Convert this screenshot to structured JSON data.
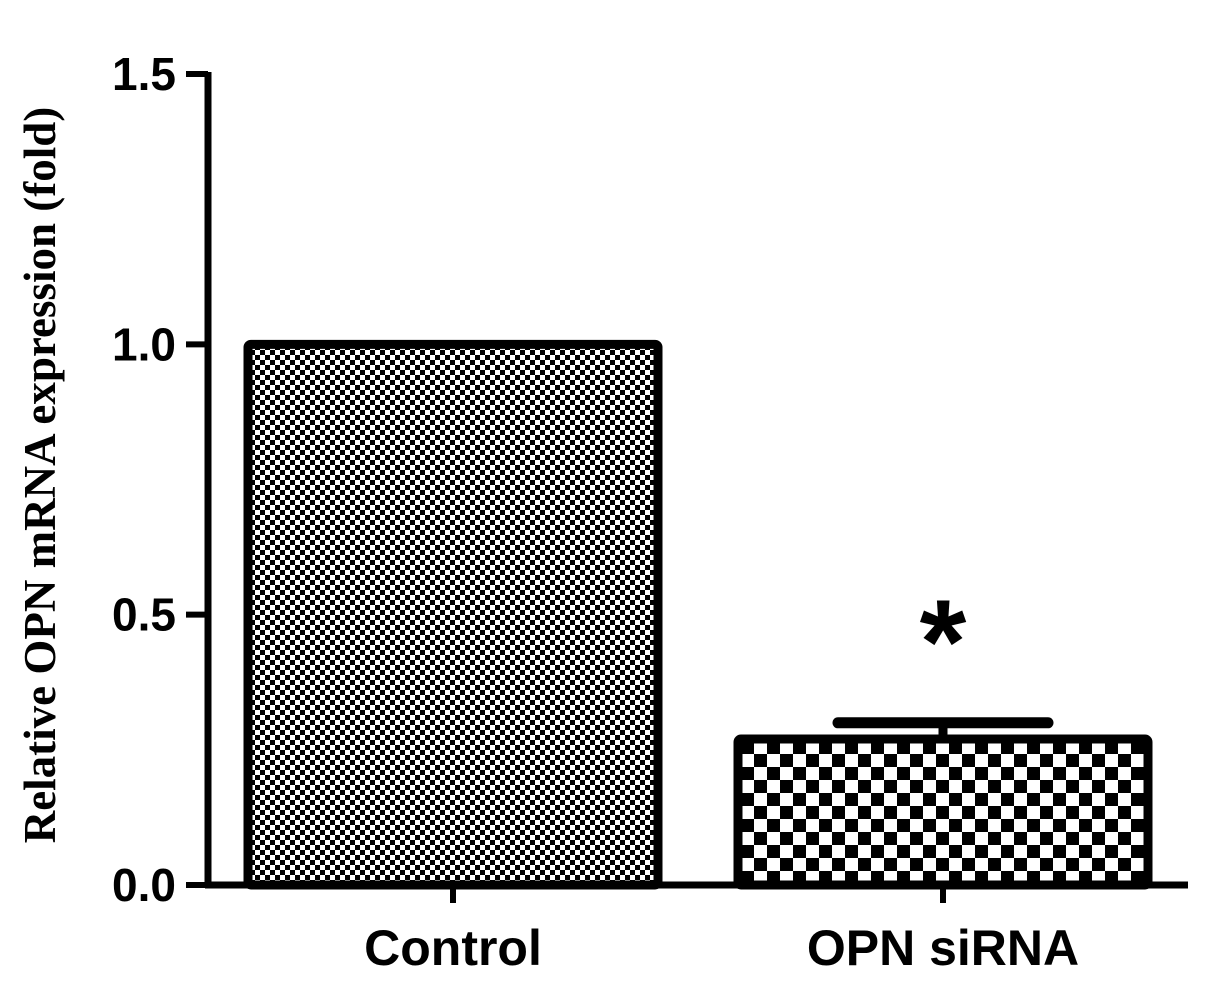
{
  "chart_data": {
    "type": "bar",
    "categories": [
      "Control",
      "OPN siRNA"
    ],
    "values": [
      1.0,
      0.27
    ],
    "errors": [
      0.0,
      0.03
    ],
    "ylabel": "Relative OPN mRNA expression (fold)",
    "xlabel": "",
    "ylim": [
      0,
      1.5
    ],
    "yticks": [
      "0.0",
      "0.5",
      "1.0",
      "1.5"
    ],
    "grid": false,
    "annotations": [
      {
        "category": "OPN siRNA",
        "text": "*"
      }
    ],
    "fills": [
      "fine-checker",
      "coarse-checker"
    ],
    "colors": {
      "bar_stroke": "#000000",
      "checker_dark": "#000000",
      "checker_light": "#ffffff"
    }
  }
}
